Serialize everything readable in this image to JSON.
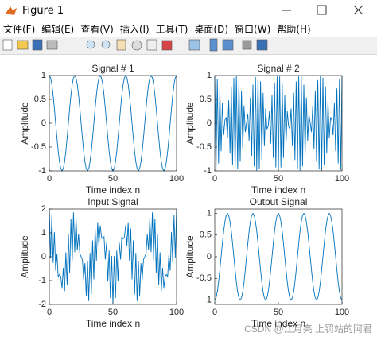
{
  "window": {
    "title": "Figure 1",
    "menu": [
      "文件(F)",
      "编辑(E)",
      "查看(V)",
      "插入(I)",
      "工具(T)",
      "桌面(D)",
      "窗口(W)",
      "帮助(H)"
    ]
  },
  "watermark": "CSDN @江月亮 上罚站的阿君",
  "chart_data": [
    {
      "type": "line",
      "title": "Signal # 1",
      "xlabel": "Time index n",
      "ylabel": "Amplitude",
      "color": "#0072bd",
      "xlim": [
        0,
        100
      ],
      "xticks": [
        0,
        50,
        100
      ],
      "ylim": [
        -1,
        1
      ],
      "yticks": [
        -1,
        -0.5,
        0,
        0.5,
        1
      ],
      "x": [
        0,
        1,
        2,
        3,
        4,
        5,
        6,
        7,
        8,
        9,
        10,
        11,
        12,
        13,
        14,
        15,
        16,
        17,
        18,
        19,
        20,
        21,
        22,
        23,
        24,
        25,
        26,
        27,
        28,
        29,
        30,
        31,
        32,
        33,
        34,
        35,
        36,
        37,
        38,
        39,
        40,
        41,
        42,
        43,
        44,
        45,
        46,
        47,
        48,
        49,
        50,
        51,
        52,
        53,
        54,
        55,
        56,
        57,
        58,
        59,
        60,
        61,
        62,
        63,
        64,
        65,
        66,
        67,
        68,
        69,
        70,
        71,
        72,
        73,
        74,
        75,
        76,
        77,
        78,
        79,
        80,
        81,
        82,
        83,
        84,
        85,
        86,
        87,
        88,
        89,
        90,
        91,
        92,
        93,
        94,
        95,
        96,
        97,
        98,
        99,
        100
      ],
      "values": [
        1,
        0.951,
        0.809,
        0.588,
        0.309,
        0,
        -0.309,
        -0.588,
        -0.809,
        -0.951,
        -1,
        -0.951,
        -0.809,
        -0.588,
        -0.309,
        0,
        0.309,
        0.588,
        0.809,
        0.951,
        1,
        0.951,
        0.809,
        0.588,
        0.309,
        0,
        -0.309,
        -0.588,
        -0.809,
        -0.951,
        -1,
        -0.951,
        -0.809,
        -0.588,
        -0.309,
        0,
        0.309,
        0.588,
        0.809,
        0.951,
        1,
        0.951,
        0.809,
        0.588,
        0.309,
        0,
        -0.309,
        -0.588,
        -0.809,
        -0.951,
        -1,
        -0.951,
        -0.809,
        -0.588,
        -0.309,
        0,
        0.309,
        0.588,
        0.809,
        0.951,
        1,
        0.951,
        0.809,
        0.588,
        0.309,
        0,
        -0.309,
        -0.588,
        -0.809,
        -0.951,
        -1,
        -0.951,
        -0.809,
        -0.588,
        -0.309,
        0,
        0.309,
        0.588,
        0.809,
        0.951,
        1,
        0.951,
        0.809,
        0.588,
        0.309,
        0,
        -0.309,
        -0.588,
        -0.809,
        -0.951,
        -1,
        -0.951,
        -0.809,
        -0.588,
        -0.309,
        0,
        0.309,
        0.588,
        0.809,
        0.951,
        1
      ]
    },
    {
      "type": "line",
      "title": "Signal # 2",
      "xlabel": "Time index n",
      "ylabel": "Amplitude",
      "color": "#0072bd",
      "xlim": [
        0,
        100
      ],
      "xticks": [
        0,
        50,
        100
      ],
      "ylim": [
        -1,
        1
      ],
      "yticks": [
        -1,
        -0.5,
        0,
        0.5,
        1
      ],
      "x": [
        0,
        1,
        2,
        3,
        4,
        5,
        6,
        7,
        8,
        9,
        10,
        11,
        12,
        13,
        14,
        15,
        16,
        17,
        18,
        19,
        20,
        21,
        22,
        23,
        24,
        25,
        26,
        27,
        28,
        29,
        30,
        31,
        32,
        33,
        34,
        35,
        36,
        37,
        38,
        39,
        40,
        41,
        42,
        43,
        44,
        45,
        46,
        47,
        48,
        49,
        50,
        51,
        52,
        53,
        54,
        55,
        56,
        57,
        58,
        59,
        60,
        61,
        62,
        63,
        64,
        65,
        66,
        67,
        68,
        69,
        70,
        71,
        72,
        73,
        74,
        75,
        76,
        77,
        78,
        79,
        80,
        81,
        82,
        83,
        84,
        85,
        86,
        87,
        88,
        89,
        90,
        91,
        92,
        93,
        94,
        95,
        96,
        97,
        98,
        99,
        100
      ],
      "values": [
        1,
        -0.982,
        0.93,
        -0.844,
        0.729,
        -0.588,
        0.426,
        -0.249,
        0.063,
        0.125,
        -0.309,
        0.482,
        -0.637,
        0.771,
        -0.876,
        0.951,
        -0.992,
        0.998,
        -0.969,
        0.905,
        -0.809,
        0.685,
        -0.536,
        0.368,
        -0.187,
        0,
        0.187,
        -0.368,
        0.536,
        -0.685,
        0.809,
        -0.905,
        0.969,
        -0.998,
        0.992,
        -0.951,
        0.876,
        -0.771,
        0.637,
        -0.482,
        0.309,
        -0.125,
        -0.063,
        0.249,
        -0.426,
        0.588,
        -0.729,
        0.844,
        -0.93,
        0.982,
        -1,
        0.982,
        -0.93,
        0.844,
        -0.729,
        0.588,
        -0.426,
        0.249,
        -0.063,
        -0.125,
        0.309,
        -0.482,
        0.637,
        -0.771,
        0.876,
        -0.951,
        0.992,
        -0.998,
        0.969,
        -0.905,
        0.809,
        -0.685,
        0.536,
        -0.368,
        0.187,
        0,
        -0.187,
        0.368,
        -0.536,
        0.685,
        -0.809,
        0.905,
        -0.969,
        0.998,
        -0.992,
        0.951,
        -0.876,
        0.771,
        -0.637,
        0.482,
        -0.309,
        0.125,
        0.063,
        -0.249,
        0.426,
        -0.588,
        0.729,
        -0.844,
        0.93,
        -0.982,
        1
      ]
    },
    {
      "type": "line",
      "title": "Input Signal",
      "xlabel": "Time index n",
      "ylabel": "Amplitude",
      "color": "#0072bd",
      "xlim": [
        0,
        100
      ],
      "xticks": [
        0,
        50,
        100
      ],
      "ylim": [
        -2,
        2
      ],
      "yticks": [
        -2,
        -1,
        0,
        1,
        2
      ],
      "x": [
        0,
        1,
        2,
        3,
        4,
        5,
        6,
        7,
        8,
        9,
        10,
        11,
        12,
        13,
        14,
        15,
        16,
        17,
        18,
        19,
        20,
        21,
        22,
        23,
        24,
        25,
        26,
        27,
        28,
        29,
        30,
        31,
        32,
        33,
        34,
        35,
        36,
        37,
        38,
        39,
        40,
        41,
        42,
        43,
        44,
        45,
        46,
        47,
        48,
        49,
        50,
        51,
        52,
        53,
        54,
        55,
        56,
        57,
        58,
        59,
        60,
        61,
        62,
        63,
        64,
        65,
        66,
        67,
        68,
        69,
        70,
        71,
        72,
        73,
        74,
        75,
        76,
        77,
        78,
        79,
        80,
        81,
        82,
        83,
        84,
        85,
        86,
        87,
        88,
        89,
        90,
        91,
        92,
        93,
        94,
        95,
        96,
        97,
        98,
        99,
        100
      ],
      "values": [
        2,
        -0.031,
        1.739,
        -0.256,
        1.038,
        -0.588,
        0.117,
        -0.837,
        -0.746,
        -0.826,
        -1.309,
        -0.469,
        -1.446,
        0.183,
        -1.185,
        0.951,
        -0.683,
        1.586,
        -0.16,
        1.856,
        0.191,
        1.636,
        0.273,
        0.956,
        0.122,
        0,
        -0.122,
        -0.956,
        -0.273,
        -1.636,
        -0.191,
        -1.856,
        0.16,
        -1.586,
        0.683,
        -0.951,
        1.185,
        -0.183,
        1.446,
        0.469,
        1.309,
        0.826,
        0.746,
        0.837,
        -0.117,
        0.588,
        -1.038,
        0.256,
        -1.739,
        0.031,
        -2,
        0.031,
        -1.739,
        0.256,
        -1.038,
        0.588,
        -0.117,
        0.837,
        0.746,
        0.826,
        1.309,
        0.469,
        1.446,
        -0.183,
        1.185,
        -0.951,
        0.683,
        -1.586,
        0.16,
        -1.856,
        -0.191,
        -1.636,
        -0.273,
        -0.956,
        -0.122,
        0,
        0.122,
        0.956,
        0.273,
        1.636,
        0.191,
        1.856,
        -0.16,
        1.586,
        -0.683,
        0.951,
        -1.185,
        0.183,
        -1.446,
        -0.469,
        -1.309,
        -0.826,
        -0.746,
        -0.837,
        0.117,
        -0.588,
        1.038,
        -0.256,
        1.739,
        -0.031,
        2
      ]
    },
    {
      "type": "line",
      "title": "Output Signal",
      "xlabel": "Time index n",
      "ylabel": "Amplitude",
      "color": "#0072bd",
      "xlim": [
        0,
        100
      ],
      "xticks": [
        0,
        50,
        100
      ],
      "ylim": [
        -1.1,
        1.1
      ],
      "yticks": [
        -1,
        -0.5,
        0,
        0.5,
        1
      ],
      "x": [
        0,
        1,
        2,
        3,
        4,
        5,
        6,
        7,
        8,
        9,
        10,
        11,
        12,
        13,
        14,
        15,
        16,
        17,
        18,
        19,
        20,
        21,
        22,
        23,
        24,
        25,
        26,
        27,
        28,
        29,
        30,
        31,
        32,
        33,
        34,
        35,
        36,
        37,
        38,
        39,
        40,
        41,
        42,
        43,
        44,
        45,
        46,
        47,
        48,
        49,
        50,
        51,
        52,
        53,
        54,
        55,
        56,
        57,
        58,
        59,
        60,
        61,
        62,
        63,
        64,
        65,
        66,
        67,
        68,
        69,
        70,
        71,
        72,
        73,
        74,
        75,
        76,
        77,
        78,
        79,
        80,
        81,
        82,
        83,
        84,
        85,
        86,
        87,
        88,
        89,
        90,
        91,
        92,
        93,
        94,
        95,
        96,
        97,
        98,
        99,
        100
      ],
      "values": [
        -1,
        -0.951,
        -0.809,
        -0.588,
        -0.309,
        0,
        0.309,
        0.588,
        0.809,
        0.951,
        1,
        0.951,
        0.809,
        0.588,
        0.309,
        0,
        -0.309,
        -0.588,
        -0.809,
        -0.951,
        -1,
        -0.951,
        -0.809,
        -0.588,
        -0.309,
        0,
        0.309,
        0.588,
        0.809,
        0.951,
        1,
        0.951,
        0.809,
        0.588,
        0.309,
        0,
        -0.309,
        -0.588,
        -0.809,
        -0.951,
        -1,
        -0.951,
        -0.809,
        -0.588,
        -0.309,
        0,
        0.309,
        0.588,
        0.809,
        0.951,
        1,
        0.951,
        0.809,
        0.588,
        0.309,
        0,
        -0.309,
        -0.588,
        -0.809,
        -0.951,
        -1,
        -0.951,
        -0.809,
        -0.588,
        -0.309,
        0,
        0.309,
        0.588,
        0.809,
        0.951,
        1,
        0.951,
        0.809,
        0.588,
        0.309,
        0,
        -0.309,
        -0.588,
        -0.809,
        -0.951,
        -1,
        -0.951,
        -0.809,
        -0.588,
        -0.309,
        0,
        0.309,
        0.588,
        0.809,
        0.951,
        1,
        0.951,
        0.809,
        0.588,
        0.309,
        0,
        -0.309,
        -0.588,
        -0.809,
        -0.951,
        -1
      ]
    }
  ]
}
